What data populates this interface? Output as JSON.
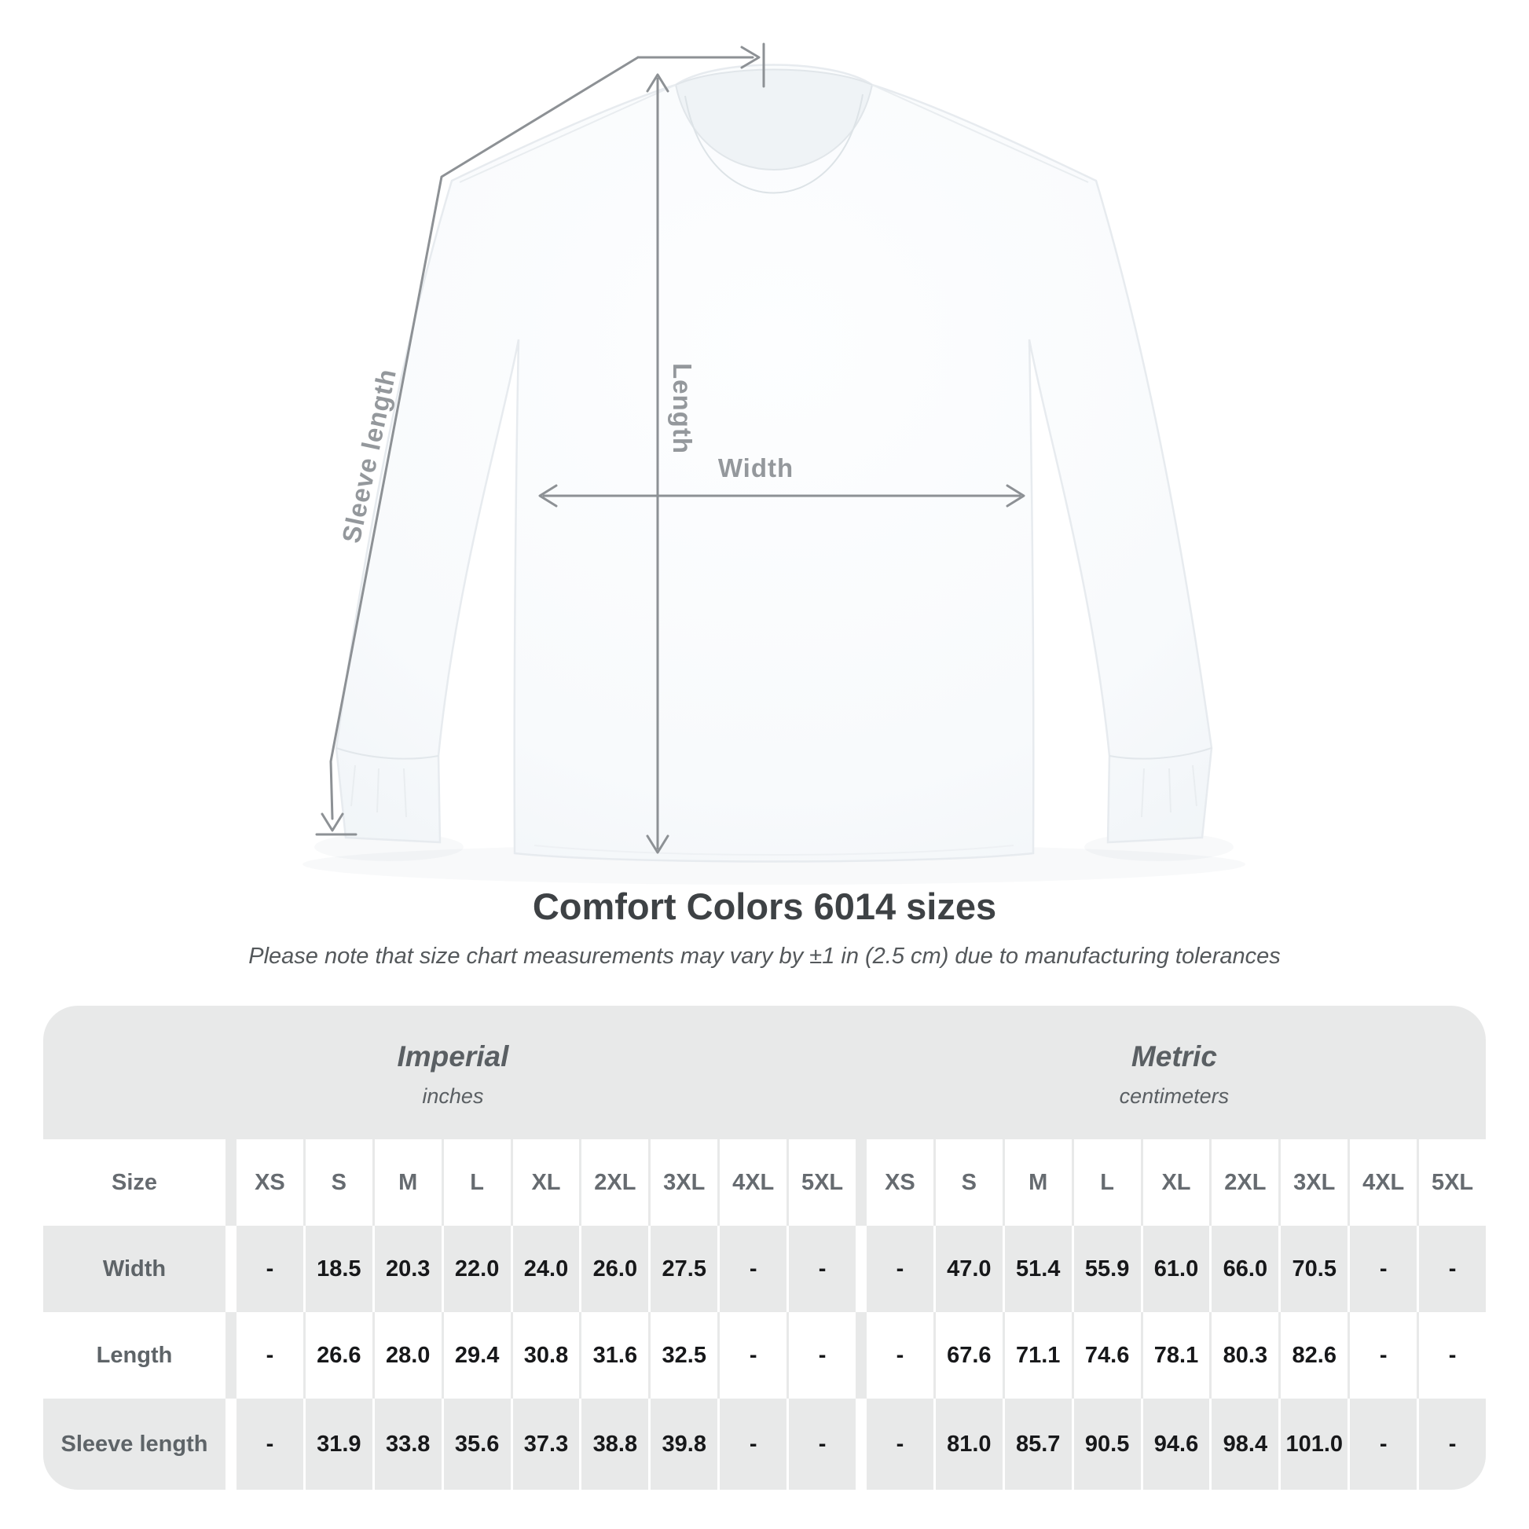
{
  "title": "Comfort Colors 6014 sizes",
  "subtitle": "Please note that size chart measurements may vary by ±1 in (2.5 cm) due to manufacturing tolerances",
  "diagram": {
    "length_label": "Length",
    "width_label": "Width",
    "sleeve_label": "Sleeve length"
  },
  "table": {
    "size_header": "Size",
    "unit_groups": [
      {
        "name": "Imperial",
        "unit": "inches"
      },
      {
        "name": "Metric",
        "unit": "centimeters"
      }
    ],
    "sizes": [
      "XS",
      "S",
      "M",
      "L",
      "XL",
      "2XL",
      "3XL",
      "4XL",
      "5XL"
    ],
    "rows": [
      {
        "label": "Width",
        "imperial": [
          "-",
          "18.5",
          "20.3",
          "22.0",
          "24.0",
          "26.0",
          "27.5",
          "-",
          "-"
        ],
        "metric": [
          "-",
          "47.0",
          "51.4",
          "55.9",
          "61.0",
          "66.0",
          "70.5",
          "-",
          "-"
        ]
      },
      {
        "label": "Length",
        "imperial": [
          "-",
          "26.6",
          "28.0",
          "29.4",
          "30.8",
          "31.6",
          "32.5",
          "-",
          "-"
        ],
        "metric": [
          "-",
          "67.6",
          "71.1",
          "74.6",
          "78.1",
          "80.3",
          "82.6",
          "-",
          "-"
        ]
      },
      {
        "label": "Sleeve length",
        "imperial": [
          "-",
          "31.9",
          "33.8",
          "35.6",
          "37.3",
          "38.8",
          "39.8",
          "-",
          "-"
        ],
        "metric": [
          "-",
          "81.0",
          "85.7",
          "90.5",
          "94.6",
          "98.4",
          "101.0",
          "-",
          "-"
        ]
      }
    ]
  },
  "chart_data": {
    "type": "table",
    "title": "Comfort Colors 6014 sizes",
    "note": "Please note that size chart measurements may vary by ±1 in (2.5 cm) due to manufacturing tolerances",
    "column_groups": [
      "Imperial (inches)",
      "Metric (centimeters)"
    ],
    "sizes": [
      "XS",
      "S",
      "M",
      "L",
      "XL",
      "2XL",
      "3XL",
      "4XL",
      "5XL"
    ],
    "rows": [
      {
        "measure": "Width",
        "imperial_in": [
          null,
          18.5,
          20.3,
          22.0,
          24.0,
          26.0,
          27.5,
          null,
          null
        ],
        "metric_cm": [
          null,
          47.0,
          51.4,
          55.9,
          61.0,
          66.0,
          70.5,
          null,
          null
        ]
      },
      {
        "measure": "Length",
        "imperial_in": [
          null,
          26.6,
          28.0,
          29.4,
          30.8,
          31.6,
          32.5,
          null,
          null
        ],
        "metric_cm": [
          null,
          67.6,
          71.1,
          74.6,
          78.1,
          80.3,
          82.6,
          null,
          null
        ]
      },
      {
        "measure": "Sleeve length",
        "imperial_in": [
          null,
          31.9,
          33.8,
          35.6,
          37.3,
          38.8,
          39.8,
          null,
          null
        ],
        "metric_cm": [
          null,
          81.0,
          85.7,
          90.5,
          94.6,
          98.4,
          101.0,
          null,
          null
        ]
      }
    ]
  },
  "colors": {
    "background": "#ffffff",
    "panel_gray": "#e8e9e9",
    "measurement_line": "#8d9195",
    "measurement_label": "#94989c",
    "title_text": "#3e4245",
    "value_text": "#17181a"
  }
}
